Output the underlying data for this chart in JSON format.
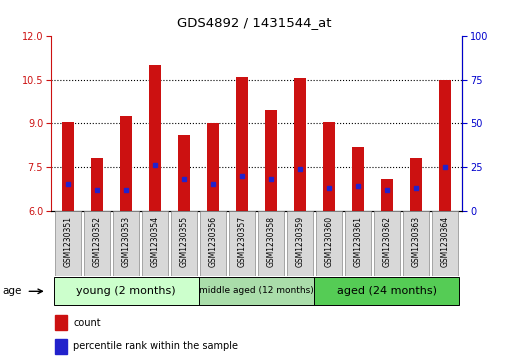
{
  "title": "GDS4892 / 1431544_at",
  "samples": [
    "GSM1230351",
    "GSM1230352",
    "GSM1230353",
    "GSM1230354",
    "GSM1230355",
    "GSM1230356",
    "GSM1230357",
    "GSM1230358",
    "GSM1230359",
    "GSM1230360",
    "GSM1230361",
    "GSM1230362",
    "GSM1230363",
    "GSM1230364"
  ],
  "count_values": [
    9.05,
    7.82,
    9.25,
    11.0,
    8.6,
    9.0,
    10.6,
    9.45,
    10.55,
    9.05,
    8.2,
    7.1,
    7.8,
    10.5
  ],
  "percentile_values": [
    15,
    12,
    12,
    26,
    18,
    15,
    20,
    18,
    24,
    13,
    14,
    12,
    13,
    25
  ],
  "ylim_left": [
    6,
    12
  ],
  "ylim_right": [
    0,
    100
  ],
  "yticks_left": [
    6,
    7.5,
    9,
    10.5,
    12
  ],
  "yticks_right": [
    0,
    25,
    50,
    75,
    100
  ],
  "group_labels": [
    "young (2 months)",
    "middle aged (12 months)",
    "aged (24 months)"
  ],
  "young_color": "#ccffcc",
  "middle_color": "#aaddaa",
  "aged_color": "#55cc55",
  "bar_color": "#cc1111",
  "percentile_color": "#2222cc",
  "base": 6,
  "young_indices": [
    0,
    1,
    2,
    3,
    4
  ],
  "middle_indices": [
    5,
    6,
    7,
    8
  ],
  "aged_indices": [
    9,
    10,
    11,
    12,
    13
  ]
}
